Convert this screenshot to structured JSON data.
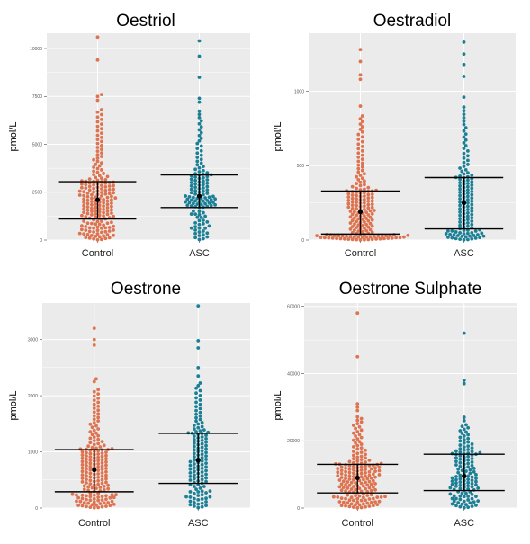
{
  "colors": {
    "control": "#de7350",
    "asc": "#1b7f95",
    "panel_bg": "#ebebeb",
    "grid": "#ffffff",
    "bar": "#000000"
  },
  "chart_data": [
    {
      "type": "scatter",
      "title": "Oestriol",
      "ylabel": "pmol/L",
      "categories": [
        "Control",
        "ASC"
      ],
      "ylim": [
        0,
        10800
      ],
      "yticks": [
        0,
        2500,
        5000,
        7500,
        10000
      ],
      "ytick_labels": [
        "0",
        "2500",
        "5000",
        "7500",
        "10000"
      ],
      "series": [
        {
          "group": "Control",
          "n": 190,
          "median": 2100,
          "q1": 1100,
          "q3": 3050,
          "max": 10600,
          "outliers": [
            10600,
            9400,
            7600,
            7500,
            7300
          ]
        },
        {
          "group": "ASC",
          "n": 130,
          "median": 2300,
          "q1": 1700,
          "q3": 3400,
          "max": 10400,
          "outliers": [
            10400,
            9600,
            8500,
            7400,
            7200
          ]
        }
      ]
    },
    {
      "type": "scatter",
      "title": "Oestradiol",
      "ylabel": "pmol/L",
      "categories": [
        "Control",
        "ASC"
      ],
      "ylim": [
        0,
        1390
      ],
      "yticks": [
        0,
        500,
        1000
      ],
      "ytick_labels": [
        "0",
        "500",
        "1000"
      ],
      "series": [
        {
          "group": "Control",
          "n": 180,
          "median": 190,
          "q1": 40,
          "q3": 330,
          "max": 1280,
          "outliers": [
            1280,
            1200,
            1110,
            1080,
            900
          ]
        },
        {
          "group": "ASC",
          "n": 130,
          "median": 250,
          "q1": 75,
          "q3": 420,
          "max": 1330,
          "outliers": [
            1330,
            1250,
            1180,
            1100,
            960
          ]
        }
      ]
    },
    {
      "type": "scatter",
      "title": "Oestrone",
      "ylabel": "pmol/L",
      "categories": [
        "Control",
        "ASC"
      ],
      "ylim": [
        0,
        3650
      ],
      "yticks": [
        0,
        1000,
        2000,
        3000
      ],
      "ytick_labels": [
        "0",
        "1000",
        "2000",
        "3000"
      ],
      "series": [
        {
          "group": "Control",
          "n": 180,
          "median": 680,
          "q1": 290,
          "q3": 1040,
          "max": 3200,
          "outliers": [
            3200,
            3000,
            2900,
            2300,
            2250
          ]
        },
        {
          "group": "ASC",
          "n": 130,
          "median": 850,
          "q1": 440,
          "q3": 1330,
          "max": 3600,
          "outliers": [
            3600,
            2980,
            2850,
            2500,
            2350
          ]
        }
      ]
    },
    {
      "type": "scatter",
      "title": "Oestrone Sulphate",
      "ylabel": "pmol/L",
      "categories": [
        "Control",
        "ASC"
      ],
      "ylim": [
        0,
        61000
      ],
      "yticks": [
        0,
        20000,
        40000,
        60000
      ],
      "ytick_labels": [
        "0",
        "20000",
        "40000",
        "60000"
      ],
      "series": [
        {
          "group": "Control",
          "n": 180,
          "median": 9000,
          "q1": 4500,
          "q3": 13000,
          "max": 58000,
          "outliers": [
            58000,
            45000,
            31000,
            30000,
            29000
          ]
        },
        {
          "group": "ASC",
          "n": 130,
          "median": 9500,
          "q1": 5200,
          "q3": 16000,
          "max": 52000,
          "outliers": [
            52000,
            38000,
            37000,
            27000,
            26000
          ]
        }
      ]
    }
  ]
}
